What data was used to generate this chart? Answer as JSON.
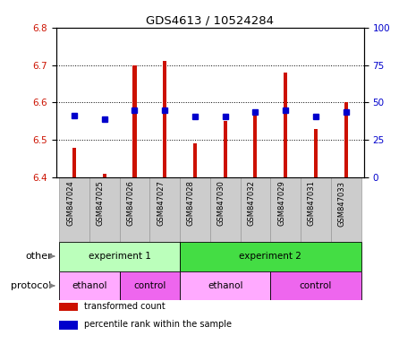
{
  "title": "GDS4613 / 10524284",
  "samples": [
    "GSM847024",
    "GSM847025",
    "GSM847026",
    "GSM847027",
    "GSM847028",
    "GSM847030",
    "GSM847032",
    "GSM847029",
    "GSM847031",
    "GSM847033"
  ],
  "bar_values": [
    6.48,
    6.41,
    6.7,
    6.71,
    6.49,
    6.55,
    6.58,
    6.68,
    6.53,
    6.6
  ],
  "blue_values": [
    6.565,
    6.555,
    6.58,
    6.58,
    6.562,
    6.562,
    6.574,
    6.58,
    6.562,
    6.574
  ],
  "ylim_left": [
    6.4,
    6.8
  ],
  "ylim_right": [
    0,
    100
  ],
  "yticks_left": [
    6.4,
    6.5,
    6.6,
    6.7,
    6.8
  ],
  "yticks_right": [
    0,
    25,
    50,
    75,
    100
  ],
  "bar_color": "#cc1100",
  "blue_color": "#0000cc",
  "bar_bottom": 6.4,
  "bar_width": 0.12,
  "other_groups": [
    {
      "label": "experiment 1",
      "start": 0,
      "end": 4,
      "color": "#bbffbb"
    },
    {
      "label": "experiment 2",
      "start": 4,
      "end": 10,
      "color": "#44dd44"
    }
  ],
  "protocol_groups": [
    {
      "label": "ethanol",
      "start": 0,
      "end": 2,
      "color": "#ffaaff"
    },
    {
      "label": "control",
      "start": 2,
      "end": 4,
      "color": "#ee66ee"
    },
    {
      "label": "ethanol",
      "start": 4,
      "end": 7,
      "color": "#ffaaff"
    },
    {
      "label": "control",
      "start": 7,
      "end": 10,
      "color": "#ee66ee"
    }
  ],
  "legend_items": [
    {
      "label": "transformed count",
      "color": "#cc1100"
    },
    {
      "label": "percentile rank within the sample",
      "color": "#0000cc"
    }
  ],
  "other_label": "other",
  "protocol_label": "protocol",
  "sample_bg_color": "#cccccc",
  "sample_border_color": "#999999"
}
